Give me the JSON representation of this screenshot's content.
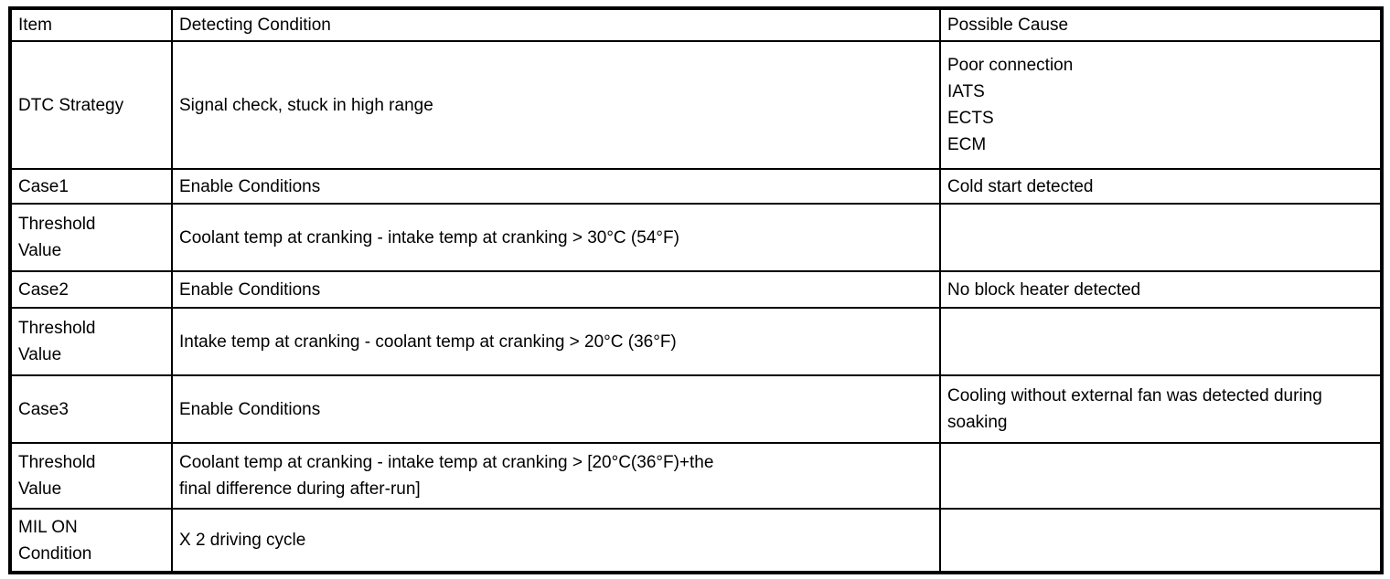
{
  "table": {
    "columns": [
      "Item",
      "Detecting Condition",
      "Possible Cause"
    ],
    "rows": [
      {
        "item": "DTC Strategy",
        "condition": "Signal check, stuck in high range",
        "cause": "Poor connection\nIATS\nECTS\nECM"
      },
      {
        "item": "Case1",
        "condition": "Enable Conditions",
        "cause": "Cold start detected"
      },
      {
        "item": "Threshold\nValue",
        "condition": "Coolant temp at cranking - intake temp at cranking > 30°C (54°F)",
        "cause": ""
      },
      {
        "item": "Case2",
        "condition": "Enable Conditions",
        "cause": "No block heater detected"
      },
      {
        "item": "Threshold\nValue",
        "condition": "Intake temp at cranking - coolant temp at cranking > 20°C (36°F)",
        "cause": ""
      },
      {
        "item": "Case3",
        "condition": "Enable Conditions",
        "cause": "Cooling without external fan was detected during soaking"
      },
      {
        "item": "Threshold\nValue",
        "condition": "Coolant temp at cranking - intake temp at cranking > [20°C(36°F)+the\nfinal difference during after-run]",
        "cause": ""
      },
      {
        "item": "MIL ON\nCondition",
        "condition": "X 2 driving cycle",
        "cause": ""
      }
    ]
  },
  "colors": {
    "border": "#000000",
    "text": "#000000",
    "background": "#ffffff"
  }
}
